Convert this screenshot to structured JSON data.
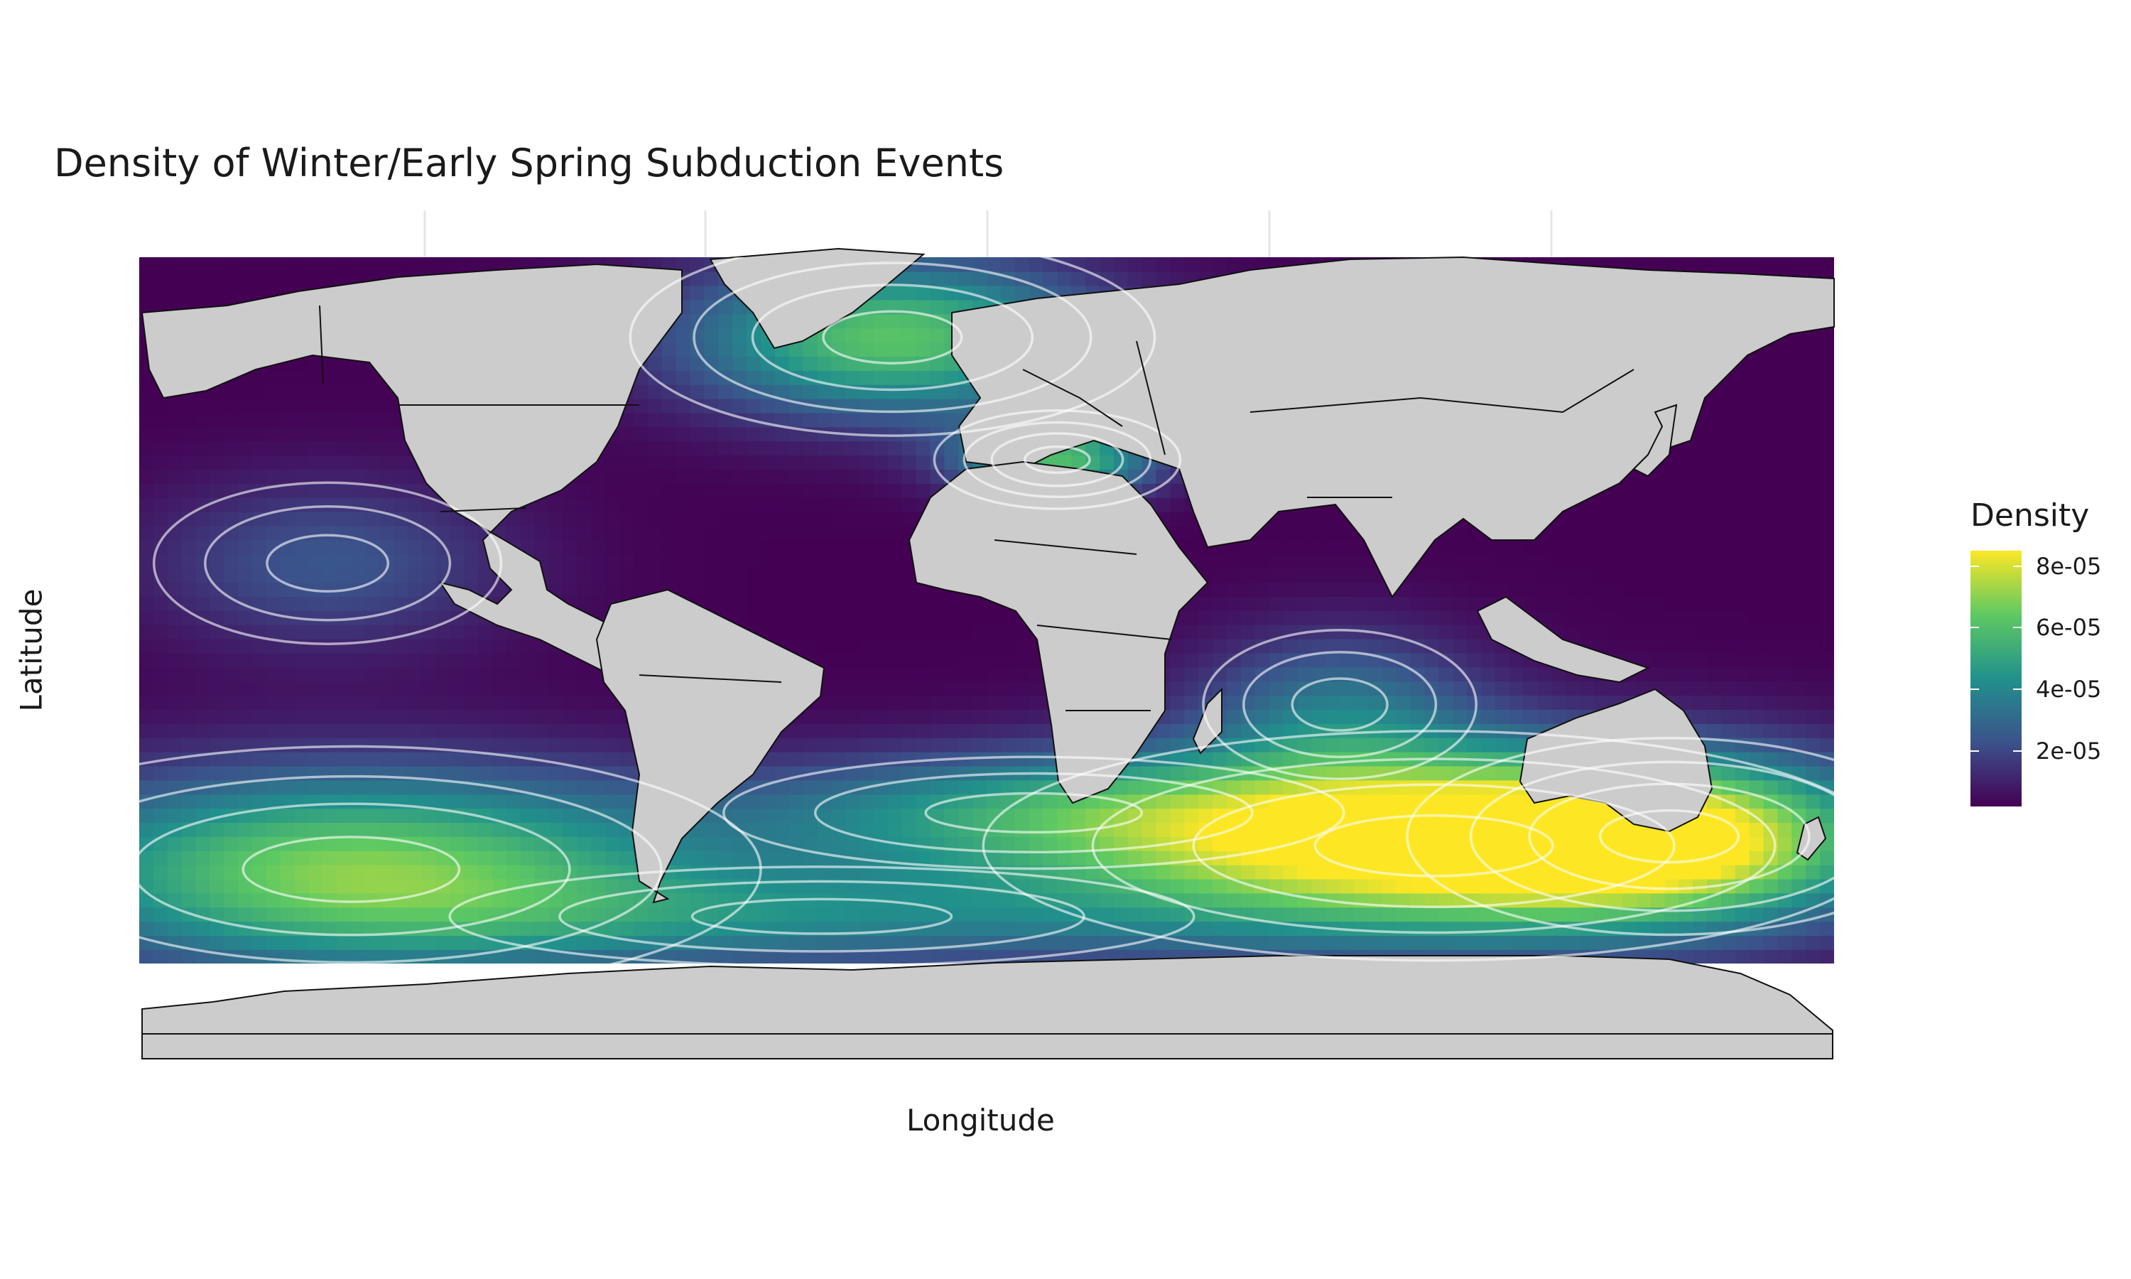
{
  "chart_data": {
    "type": "heatmap",
    "title": "Density of Winter/Early Spring Subduction Events",
    "xlabel": "Longitude",
    "ylabel": "Latitude",
    "legend": {
      "title": "Density",
      "ticks": [
        {
          "label": "2e-05",
          "value": 2e-05
        },
        {
          "label": "4e-05",
          "value": 4e-05
        },
        {
          "label": "6e-05",
          "value": 6e-05
        },
        {
          "label": "8e-05",
          "value": 8e-05
        }
      ],
      "min": 2e-06,
      "max": 8.5e-05,
      "placement": "right"
    },
    "xlim": [
      -180,
      180
    ],
    "ylim": [
      -70,
      80
    ],
    "basemap": "world country borders",
    "density_peaks": [
      {
        "lon": 95,
        "lat": -45,
        "density": 8.5e-05,
        "spread_lon": 55,
        "spread_lat": 14
      },
      {
        "lon": 145,
        "lat": -43,
        "density": 5e-05,
        "spread_lon": 32,
        "spread_lat": 12
      },
      {
        "lon": -135,
        "lat": -50,
        "density": 6.5e-05,
        "spread_lon": 50,
        "spread_lat": 15
      },
      {
        "lon": -20,
        "lat": 63,
        "density": 6e-05,
        "spread_lon": 32,
        "spread_lat": 12
      },
      {
        "lon": 15,
        "lat": 37,
        "density": 5.5e-05,
        "spread_lon": 15,
        "spread_lat": 6
      },
      {
        "lon": 10,
        "lat": -38,
        "density": 3.5e-05,
        "spread_lon": 50,
        "spread_lat": 9
      },
      {
        "lon": 75,
        "lat": -15,
        "density": 2.8e-05,
        "spread_lon": 22,
        "spread_lat": 12
      },
      {
        "lon": -140,
        "lat": 15,
        "density": 2.2e-05,
        "spread_lon": 28,
        "spread_lat": 13
      },
      {
        "lon": -35,
        "lat": -60,
        "density": 3e-05,
        "spread_lon": 60,
        "spread_lat": 8
      }
    ],
    "grid": false,
    "colormap": "viridis",
    "contour_color": "#ffffff"
  }
}
